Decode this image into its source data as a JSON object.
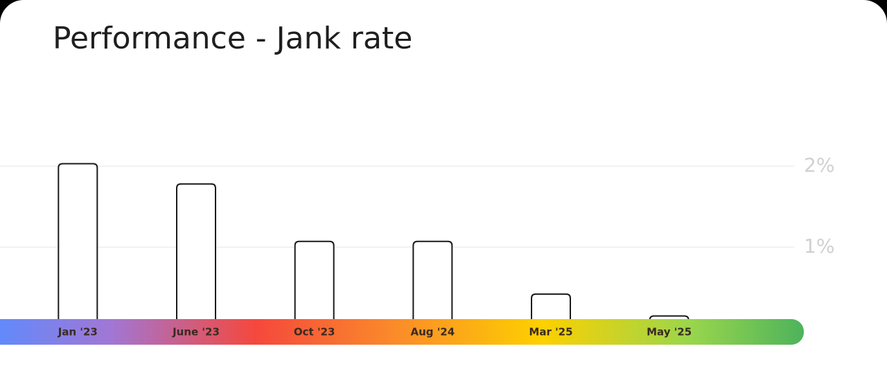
{
  "chart_data": {
    "type": "bar",
    "title": "Performance - Jank rate",
    "categories": [
      "Jan '23",
      "June '23",
      "Oct '23",
      "Aug '24",
      "Mar '25",
      "May '25"
    ],
    "values": [
      2.03,
      1.78,
      1.07,
      1.07,
      0.42,
      0.15
    ],
    "color": "#ffffff",
    "ylim": [
      0,
      3.2
    ],
    "yticks": [
      {
        "value": 1,
        "label": "1%"
      },
      {
        "value": 2,
        "label": "2%"
      }
    ],
    "grid": true
  }
}
